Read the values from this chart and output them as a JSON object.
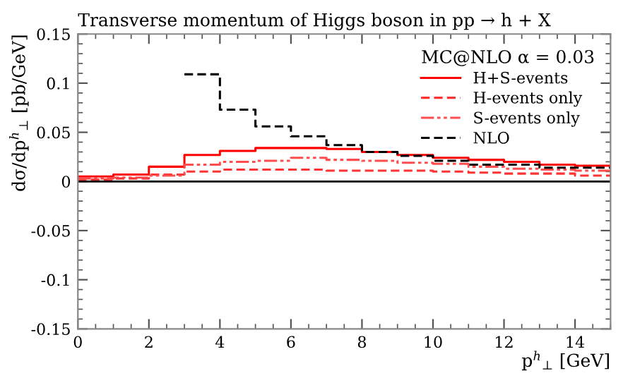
{
  "chart_data": {
    "type": "histogram",
    "title": "Transverse momentum of Higgs boson in pp → h + X",
    "xlabel": "p$^{h}$$_{⊥}$ [GeV]",
    "ylabel": "dσ/dp$^{h}$$_{⊥}$ [pb/GeV]",
    "legend_title": "MC@NLO α = 0.03",
    "bins": [
      0,
      1,
      2,
      3,
      4,
      5,
      6,
      7,
      8,
      9,
      10,
      11,
      12,
      13,
      14,
      15
    ],
    "series": [
      {
        "name": "H+S-events",
        "color": "#ff0000",
        "line_style": "solid",
        "values": [
          0.005,
          0.007,
          0.015,
          0.027,
          0.031,
          0.034,
          0.034,
          0.033,
          0.03,
          0.027,
          0.024,
          0.022,
          0.02,
          0.017,
          0.016
        ]
      },
      {
        "name": "H-events only",
        "color": "#ff3333",
        "line_style": "dashed",
        "values": [
          0.002,
          0.003,
          0.007,
          0.01,
          0.012,
          0.012,
          0.012,
          0.011,
          0.011,
          0.011,
          0.01,
          0.009,
          0.008,
          0.008,
          0.006
        ]
      },
      {
        "name": "S-events only",
        "color": "#ff4d4d",
        "line_style": "dashdot",
        "values": [
          0.003,
          0.004,
          0.006,
          0.017,
          0.02,
          0.021,
          0.024,
          0.022,
          0.021,
          0.019,
          0.018,
          0.015,
          0.013,
          0.012,
          0.011
        ]
      },
      {
        "name": "NLO",
        "color": "#000000",
        "line_style": "dashed",
        "bins": [
          3,
          4,
          5,
          6,
          7,
          8,
          9,
          10,
          11,
          12,
          13,
          14,
          15
        ],
        "values": [
          0.109,
          0.073,
          0.056,
          0.046,
          0.037,
          0.03,
          0.026,
          0.021,
          0.017,
          0.017,
          0.014,
          0.014
        ]
      }
    ],
    "xlim": [
      0,
      15
    ],
    "xticks": [
      0,
      2,
      4,
      6,
      8,
      10,
      12,
      14
    ],
    "ylim": [
      -0.15,
      0.15
    ],
    "yticks": [
      {
        "value": -0.15,
        "label": "-0.15"
      },
      {
        "value": -0.1,
        "label": "-0.1"
      },
      {
        "value": -0.05,
        "label": "-0.05"
      },
      0,
      0.05,
      0.1,
      0.15
    ],
    "ref_lines": [
      {
        "axis": "y",
        "value": 0,
        "color": "#000000",
        "line_style": "solid"
      }
    ],
    "legend": "top right",
    "grid": false
  }
}
